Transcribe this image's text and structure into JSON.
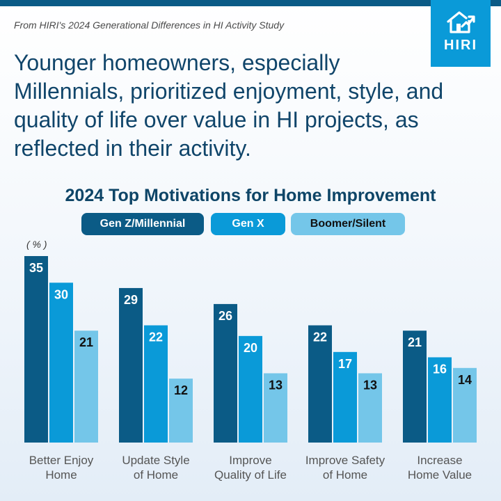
{
  "source": "From HIRI's 2024 Generational Differences in HI Activity Study",
  "logo": {
    "text": "HIRI",
    "icon": "house-arrow-icon"
  },
  "headline": "Younger homeowners, especially Millennials, prioritized enjoyment, style, and quality of life over value in HI projects, as reflected in their activity.",
  "colors": {
    "brand": "#0a9ad8",
    "dark": "#0b5b86",
    "mid": "#0a9ad8",
    "light": "#74c6e9"
  },
  "chart_data": {
    "type": "bar",
    "title": "2024 Top Motivations for Home Improvement",
    "unit": "( % )",
    "categories": [
      [
        "Better Enjoy",
        "Home"
      ],
      [
        "Update Style",
        "of Home"
      ],
      [
        "Improve",
        "Quality of Life"
      ],
      [
        "Improve Safety",
        "of Home"
      ],
      [
        "Increase",
        "Home Value"
      ]
    ],
    "series": [
      {
        "name": "Gen Z/Millennial",
        "color": "#0b5b86",
        "label_color": "#ffffff",
        "values": [
          35,
          29,
          26,
          22,
          21
        ]
      },
      {
        "name": "Gen X",
        "color": "#0a9ad8",
        "label_color": "#ffffff",
        "values": [
          30,
          22,
          20,
          17,
          16
        ]
      },
      {
        "name": "Boomer/Silent",
        "color": "#74c6e9",
        "label_color": "#111111",
        "values": [
          21,
          12,
          13,
          13,
          14
        ]
      }
    ],
    "ylim": [
      0,
      35
    ],
    "grid": false,
    "legend_position": "top"
  }
}
